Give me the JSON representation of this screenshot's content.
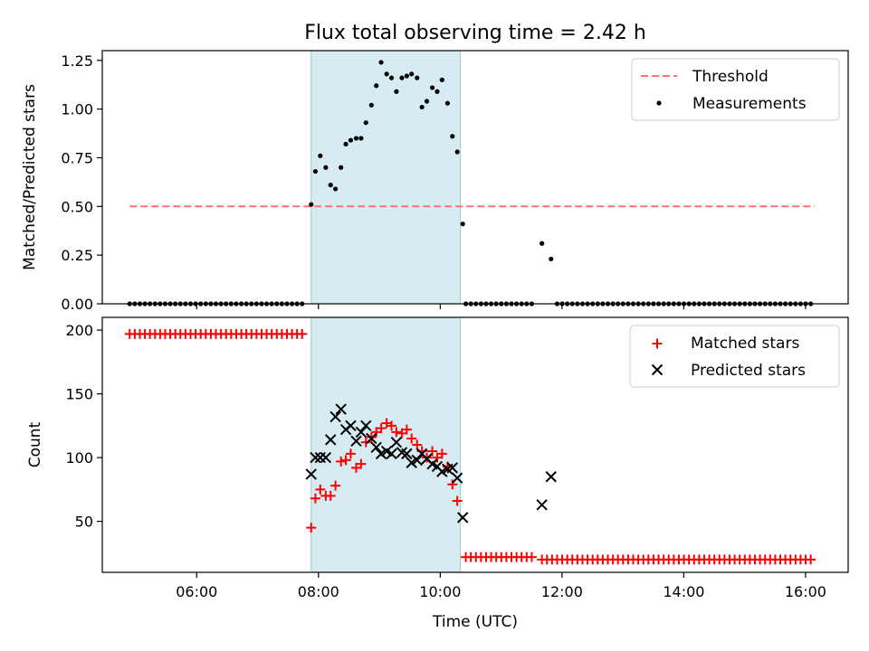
{
  "title": "Flux total observing time = 2.42 h",
  "colors": {
    "threshold": "#ff7070",
    "measurement": "#000000",
    "matched": "#ff0000",
    "predicted": "#000000",
    "span": "#add8e6"
  },
  "chart_data": [
    {
      "id": "ratio",
      "type": "scatter",
      "ylabel": "Matched/Predicted stars",
      "ylim": [
        0,
        1.3
      ],
      "yticks": [
        0,
        0.25,
        0.5,
        0.75,
        1.0,
        1.25
      ],
      "ytick_labels": [
        "0.00",
        "0.25",
        "0.50",
        "0.75",
        "1.00",
        "1.25"
      ],
      "xlim": [
        4.45,
        16.7
      ],
      "xticks": [
        6,
        8,
        10,
        12,
        14,
        16
      ],
      "shaded_span": [
        7.88,
        10.33
      ],
      "threshold": {
        "name": "Threshold",
        "value": 0.5,
        "x": [
          4.9,
          16.15
        ]
      },
      "legend": [
        "Threshold",
        "Measurements"
      ],
      "legend_position": "top-right",
      "zero_range": [
        [
          4.9,
          7.8
        ],
        [
          10.42,
          11.58
        ],
        [
          11.92,
          16.15
        ]
      ],
      "zero_step": 0.0833,
      "points": [
        [
          7.88,
          0.51
        ],
        [
          7.95,
          0.68
        ],
        [
          8.03,
          0.76
        ],
        [
          8.12,
          0.7
        ],
        [
          8.2,
          0.61
        ],
        [
          8.28,
          0.59
        ],
        [
          8.37,
          0.7
        ],
        [
          8.45,
          0.82
        ],
        [
          8.53,
          0.84
        ],
        [
          8.62,
          0.85
        ],
        [
          8.7,
          0.85
        ],
        [
          8.78,
          0.93
        ],
        [
          8.87,
          1.02
        ],
        [
          8.95,
          1.12
        ],
        [
          9.03,
          1.24
        ],
        [
          9.12,
          1.18
        ],
        [
          9.2,
          1.16
        ],
        [
          9.28,
          1.09
        ],
        [
          9.37,
          1.16
        ],
        [
          9.45,
          1.17
        ],
        [
          9.53,
          1.18
        ],
        [
          9.62,
          1.16
        ],
        [
          9.7,
          1.01
        ],
        [
          9.78,
          1.04
        ],
        [
          9.87,
          1.11
        ],
        [
          9.95,
          1.09
        ],
        [
          10.03,
          1.15
        ],
        [
          10.12,
          1.03
        ],
        [
          10.2,
          0.86
        ],
        [
          10.28,
          0.78
        ],
        [
          10.37,
          0.41
        ],
        [
          11.67,
          0.31
        ],
        [
          11.82,
          0.23
        ]
      ]
    },
    {
      "id": "counts",
      "type": "scatter",
      "ylabel": "Count",
      "xlabel": "Time (UTC)",
      "ylim": [
        10,
        210
      ],
      "yticks": [
        50,
        100,
        150,
        200
      ],
      "ytick_labels": [
        "50",
        "100",
        "150",
        "200"
      ],
      "xlim": [
        4.45,
        16.7
      ],
      "xticks": [
        6,
        8,
        10,
        12,
        14,
        16
      ],
      "xtick_labels": [
        "06:00",
        "08:00",
        "10:00",
        "12:00",
        "14:00",
        "16:00"
      ],
      "shaded_span": [
        7.88,
        10.33
      ],
      "legend_position": "top-right",
      "series": [
        {
          "name": "Matched stars",
          "marker": "plus",
          "flat_runs": [
            {
              "from": 4.9,
              "to": 7.8,
              "step": 0.0833,
              "value": 197
            },
            {
              "from": 10.42,
              "to": 11.58,
              "step": 0.0833,
              "value": 22
            },
            {
              "from": 11.67,
              "to": 16.15,
              "step": 0.0833,
              "value": 20
            }
          ],
          "points": [
            [
              7.88,
              45
            ],
            [
              7.95,
              68
            ],
            [
              8.03,
              75
            ],
            [
              8.12,
              70
            ],
            [
              8.2,
              70
            ],
            [
              8.28,
              78
            ],
            [
              8.37,
              97
            ],
            [
              8.45,
              98
            ],
            [
              8.53,
              103
            ],
            [
              8.62,
              92
            ],
            [
              8.7,
              95
            ],
            [
              8.78,
              112
            ],
            [
              8.87,
              116
            ],
            [
              8.95,
              120
            ],
            [
              9.03,
              123
            ],
            [
              9.12,
              127
            ],
            [
              9.2,
              125
            ],
            [
              9.28,
              120
            ],
            [
              9.37,
              119
            ],
            [
              9.45,
              122
            ],
            [
              9.53,
              115
            ],
            [
              9.62,
              110
            ],
            [
              9.7,
              105
            ],
            [
              9.78,
              100
            ],
            [
              9.87,
              105
            ],
            [
              9.95,
              100
            ],
            [
              10.03,
              103
            ],
            [
              10.12,
              93
            ],
            [
              10.2,
              79
            ],
            [
              10.28,
              66
            ]
          ]
        },
        {
          "name": "Predicted stars",
          "marker": "x",
          "points": [
            [
              7.88,
              87
            ],
            [
              7.95,
              100
            ],
            [
              8.03,
              100
            ],
            [
              8.12,
              100
            ],
            [
              8.2,
              114
            ],
            [
              8.28,
              132
            ],
            [
              8.37,
              138
            ],
            [
              8.45,
              122
            ],
            [
              8.53,
              125
            ],
            [
              8.62,
              113
            ],
            [
              8.7,
              120
            ],
            [
              8.78,
              125
            ],
            [
              8.87,
              115
            ],
            [
              8.95,
              108
            ],
            [
              9.03,
              103
            ],
            [
              9.12,
              105
            ],
            [
              9.2,
              103
            ],
            [
              9.28,
              112
            ],
            [
              9.37,
              104
            ],
            [
              9.45,
              103
            ],
            [
              9.53,
              96
            ],
            [
              9.62,
              98
            ],
            [
              9.7,
              103
            ],
            [
              9.78,
              99
            ],
            [
              9.87,
              95
            ],
            [
              9.95,
              93
            ],
            [
              10.03,
              89
            ],
            [
              10.12,
              91
            ],
            [
              10.2,
              92
            ],
            [
              10.28,
              84
            ],
            [
              10.37,
              53
            ],
            [
              11.67,
              63
            ],
            [
              11.82,
              85
            ]
          ]
        }
      ]
    }
  ]
}
